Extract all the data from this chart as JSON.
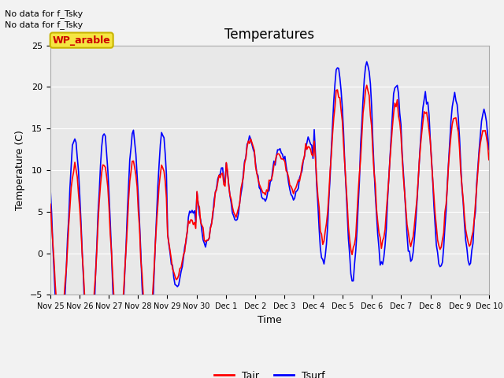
{
  "title": "Temperatures",
  "xlabel": "Time",
  "ylabel": "Temperature (C)",
  "ylim": [
    -5,
    25
  ],
  "yticks": [
    -5,
    0,
    5,
    10,
    15,
    20,
    25
  ],
  "background_color": "#e8e8e8",
  "fig_background": "#f2f2f2",
  "annotations": [
    "No data for f_Tsky",
    "No data for f_Tsky"
  ],
  "legend_label": "WP_arable",
  "legend_box_facecolor": "#f5e642",
  "legend_box_edgecolor": "#c8b400",
  "legend_text_color": "#cc0000",
  "line_Tair_color": "red",
  "line_Tsurf_color": "blue",
  "x_tick_labels": [
    "Nov 25",
    "Nov 26",
    "Nov 27",
    "Nov 28",
    "Nov 29",
    "Nov 30",
    "Dec 1",
    "Dec 2",
    "Dec 3",
    "Dec 4",
    "Dec 5",
    "Dec 6",
    "Dec 7",
    "Dec 8",
    "Dec 9",
    "Dec 10"
  ],
  "total_days": 15.0,
  "points_per_day": 24,
  "tair_daily_means": [
    1.0,
    0.5,
    0.5,
    0.5,
    0.5,
    5.5,
    9.0,
    9.5,
    10.0,
    10.5,
    10.0,
    9.5,
    9.0,
    8.5,
    8.0
  ],
  "tair_daily_amps": [
    9.5,
    10.5,
    10.5,
    10.0,
    3.5,
    4.0,
    4.5,
    2.5,
    2.5,
    9.0,
    10.0,
    8.5,
    8.0,
    8.0,
    7.0
  ],
  "tsurf_daily_means": [
    1.0,
    0.5,
    0.5,
    0.5,
    0.5,
    5.5,
    9.0,
    9.5,
    10.0,
    10.5,
    10.0,
    9.5,
    9.0,
    8.5,
    8.0
  ],
  "tsurf_daily_amps": [
    13.0,
    14.0,
    14.0,
    14.0,
    4.5,
    4.5,
    5.0,
    3.0,
    3.5,
    12.0,
    13.0,
    11.0,
    10.0,
    10.5,
    9.0
  ],
  "peak_hour": 14,
  "figsize": [
    6.4,
    4.8
  ],
  "dpi": 100
}
